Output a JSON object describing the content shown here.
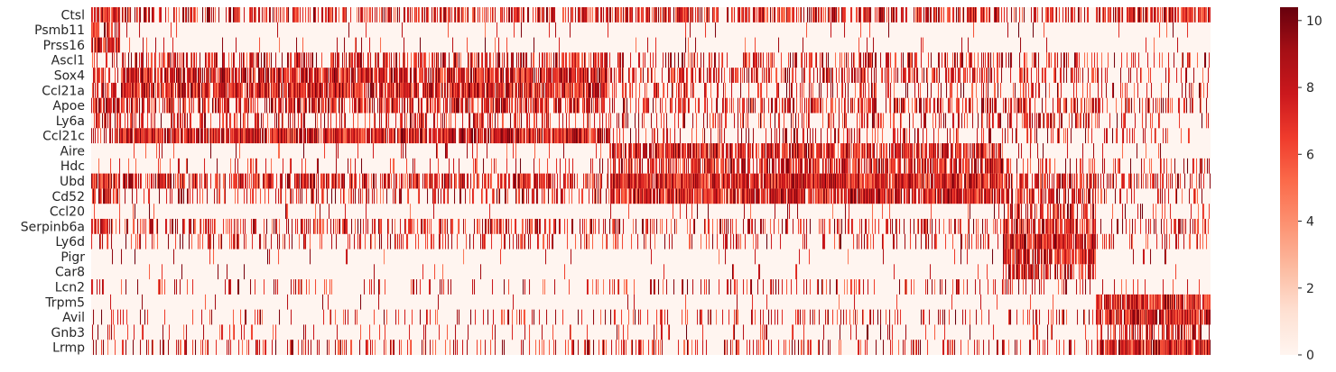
{
  "chart_data": {
    "type": "heatmap",
    "title": "",
    "xlabel": "",
    "ylabel": "",
    "genes": [
      "Ctsl",
      "Psmb11",
      "Prss16",
      "Ascl1",
      "Sox4",
      "Ccl21a",
      "Apoe",
      "Ly6a",
      "Ccl21c",
      "Aire",
      "Hdc",
      "Ubd",
      "Cd52",
      "Ccl20",
      "Serpinb6a",
      "Ly6d",
      "Pigr",
      "Car8",
      "Lcn2",
      "Trpm5",
      "Avil",
      "Gnb3",
      "Lrmp"
    ],
    "n_cells": 1240,
    "value_range": [
      0,
      10.4
    ],
    "colormap": "Reds",
    "colorbar_ticks": [
      0,
      2,
      4,
      6,
      8,
      10
    ],
    "x_ticks_shown": false,
    "cell_groups": [
      {
        "cells": [
          0,
          32
        ]
      },
      {
        "cells": [
          32,
          575
        ]
      },
      {
        "cells": [
          575,
          1010
        ]
      },
      {
        "cells": [
          1010,
          1113
        ]
      },
      {
        "cells": [
          1113,
          1240
        ]
      }
    ],
    "expression_fraction": [
      [
        0.9,
        0.5,
        0.65,
        0.55,
        0.65
      ],
      [
        0.8,
        0.04,
        0.03,
        0.03,
        0.03
      ],
      [
        0.8,
        0.05,
        0.03,
        0.03,
        0.03
      ],
      [
        0.2,
        0.5,
        0.4,
        0.3,
        0.2
      ],
      [
        0.5,
        0.85,
        0.45,
        0.4,
        0.2
      ],
      [
        0.6,
        0.88,
        0.3,
        0.3,
        0.2
      ],
      [
        0.85,
        0.6,
        0.45,
        0.45,
        0.35
      ],
      [
        0.4,
        0.35,
        0.3,
        0.35,
        0.2
      ],
      [
        0.4,
        0.9,
        0.2,
        0.2,
        0.1
      ],
      [
        0.05,
        0.05,
        0.8,
        0.15,
        0.05
      ],
      [
        0.1,
        0.1,
        0.7,
        0.4,
        0.2
      ],
      [
        0.9,
        0.6,
        0.95,
        0.7,
        0.4
      ],
      [
        0.6,
        0.3,
        0.9,
        0.6,
        0.3
      ],
      [
        0.03,
        0.03,
        0.05,
        0.6,
        0.1
      ],
      [
        0.6,
        0.4,
        0.3,
        0.8,
        0.3
      ],
      [
        0.3,
        0.25,
        0.2,
        0.9,
        0.2
      ],
      [
        0.05,
        0.03,
        0.03,
        0.8,
        0.05
      ],
      [
        0.02,
        0.02,
        0.02,
        0.7,
        0.02
      ],
      [
        0.2,
        0.15,
        0.2,
        0.2,
        0.1
      ],
      [
        0.02,
        0.02,
        0.02,
        0.02,
        0.9
      ],
      [
        0.2,
        0.15,
        0.25,
        0.25,
        0.92
      ],
      [
        0.1,
        0.1,
        0.1,
        0.1,
        0.5
      ],
      [
        0.3,
        0.25,
        0.25,
        0.2,
        0.92
      ]
    ]
  }
}
